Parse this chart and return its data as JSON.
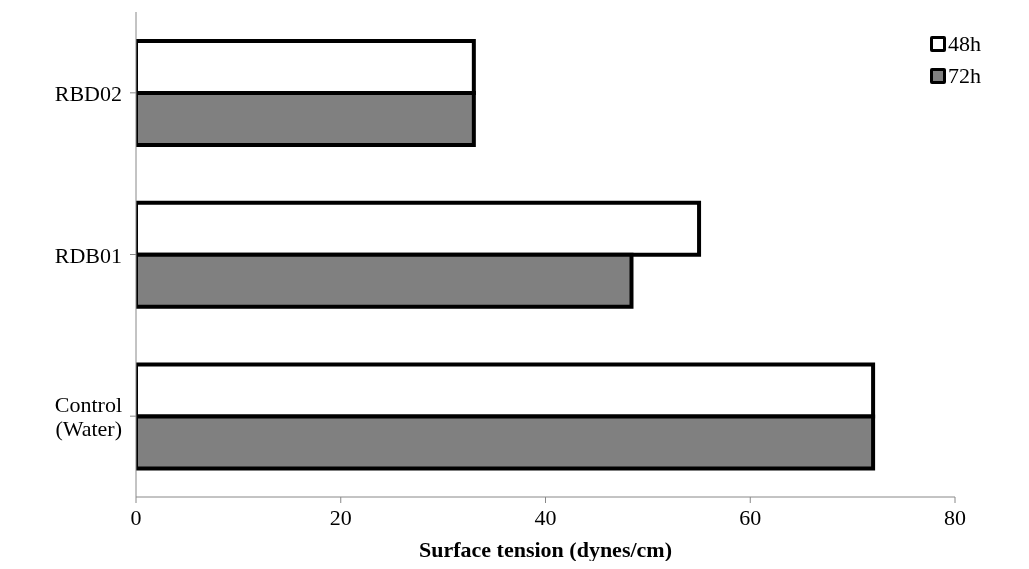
{
  "chart_data": {
    "type": "bar",
    "orientation": "horizontal",
    "xlabel": "Surface tension (dynes/cm)",
    "categories": [
      "RBD02",
      "RDB01",
      "Control (Water)"
    ],
    "series": [
      {
        "name": "48h",
        "color": "#ffffff",
        "values": [
          33,
          55,
          72
        ]
      },
      {
        "name": "72h",
        "color": "#808080",
        "values": [
          33,
          48.4,
          72
        ]
      }
    ],
    "xlim": [
      0,
      80
    ],
    "xticks": [
      0,
      20,
      40,
      60,
      80
    ],
    "grid": false,
    "legend": "top right"
  }
}
